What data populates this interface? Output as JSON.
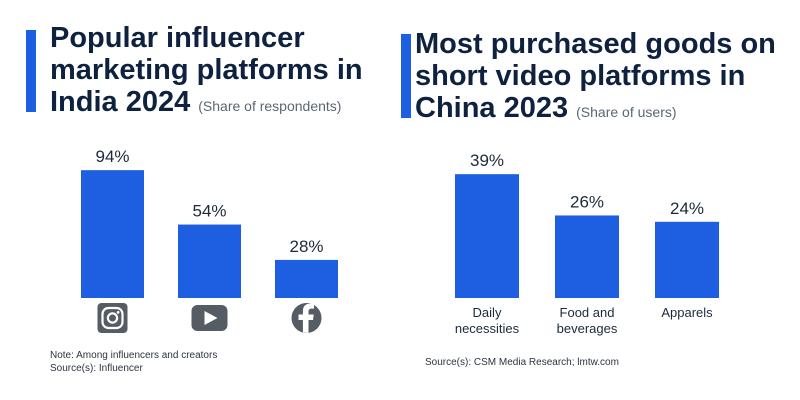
{
  "left": {
    "title": "Popular influencer marketing platforms in India 2024",
    "subtitle": "(Share of respondents)",
    "note": "Note: Among influencers and creators",
    "source": "Source(s): Influencer",
    "accent_color": "#1d5fe0"
  },
  "right": {
    "title": "Most purchased goods on short video platforms in China 2023",
    "subtitle": "(Share of users)",
    "source": "Source(s): CSM Media Research; lmtw.com",
    "accent_color": "#1d5fe0"
  },
  "chart_data": [
    {
      "type": "bar",
      "categories": [
        "Instagram",
        "YouTube",
        "Facebook"
      ],
      "category_icons": [
        "instagram-icon",
        "youtube-icon",
        "facebook-icon"
      ],
      "values": [
        94,
        54,
        28
      ],
      "value_labels": [
        "94%",
        "54%",
        "28%"
      ],
      "unit": "%",
      "ylim": [
        0,
        100
      ],
      "bar_color": "#1d5fe0",
      "grid": false,
      "legend": "none"
    },
    {
      "type": "bar",
      "categories": [
        "Daily\nnecessities",
        "Food and\nbeverages",
        "Apparels"
      ],
      "values": [
        39,
        26,
        24
      ],
      "value_labels": [
        "39%",
        "26%",
        "24%"
      ],
      "unit": "%",
      "ylim": [
        0,
        40
      ],
      "bar_color": "#1d5fe0",
      "grid": false,
      "legend": "none"
    }
  ]
}
